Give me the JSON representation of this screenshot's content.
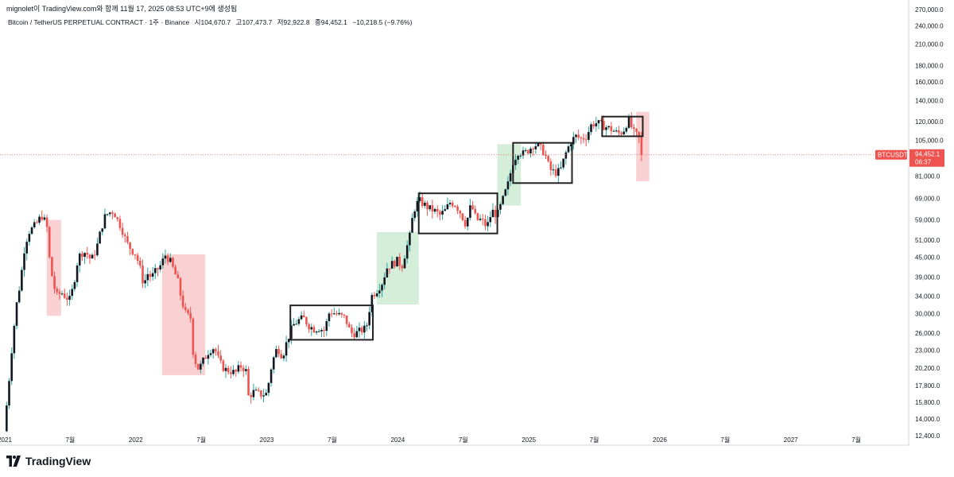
{
  "header": {
    "publish_line": "mignolet이 TradingView.com와 함께 11월 17, 2025 08:53 UTC+9에 생성됨",
    "symbol_line": "Bitcoin / TetherUS PERPETUAL CONTRACT · 1주 · Binance",
    "open": "시104,670.7",
    "high": "고107,473.7",
    "low": "저92,922.8",
    "close": "종94,452.1",
    "change": "−10,218.5 (−9.76%)"
  },
  "footer": {
    "brand": "TradingView"
  },
  "colors": {
    "up": "#26a69a",
    "down": "#ef5350",
    "body_up": "#131722",
    "red_zone": "#f8c9cb",
    "green_zone": "#cdebd3",
    "box": "#222222"
  },
  "chart_data": {
    "type": "candlestick",
    "title": "Bitcoin / TetherUS PERPETUAL CONTRACT · 1주 · Binance",
    "yscale": "log",
    "ylim": [
      12400,
      270000
    ],
    "xlim": [
      2021.0,
      2027.9
    ],
    "y_ticks": [
      "270,000.0",
      "240,000.0",
      "210,000.0",
      "180,000.0",
      "160,000.0",
      "140,000.0",
      "120,000.0",
      "105,000.0",
      "94,452.1",
      "81,000.0",
      "69,000.0",
      "59,000.0",
      "51,000.0",
      "45,000.0",
      "39,000.0",
      "34,000.0",
      "30,000.0",
      "26,000.0",
      "23,000.0",
      "20,200.0",
      "17,800.0",
      "15,800.0",
      "14,000.0",
      "12,400.0"
    ],
    "y_tick_values": [
      270000,
      240000,
      210000,
      180000,
      160000,
      140000,
      120000,
      105000,
      94452.1,
      81000,
      69000,
      59000,
      51000,
      45000,
      39000,
      34000,
      30000,
      26000,
      23000,
      20200,
      17800,
      15800,
      14000,
      12400
    ],
    "x_ticks": [
      {
        "label": "2021",
        "t": 2021.0
      },
      {
        "label": "7월",
        "t": 2021.5
      },
      {
        "label": "2022",
        "t": 2022.0
      },
      {
        "label": "7월",
        "t": 2022.5
      },
      {
        "label": "2023",
        "t": 2023.0
      },
      {
        "label": "7월",
        "t": 2023.5
      },
      {
        "label": "2024",
        "t": 2024.0
      },
      {
        "label": "7월",
        "t": 2024.5
      },
      {
        "label": "2025",
        "t": 2025.0
      },
      {
        "label": "7월",
        "t": 2025.5
      },
      {
        "label": "2026",
        "t": 2026.0
      },
      {
        "label": "7월",
        "t": 2026.5
      },
      {
        "label": "2027",
        "t": 2027.0
      },
      {
        "label": "7월",
        "t": 2027.5
      }
    ],
    "price_tag": {
      "symbol": "BTCUSDT.P",
      "price": "94,452.1",
      "countdown": "06:37",
      "value": 94452.1
    },
    "path_points": [
      [
        2020.995,
        12800
      ],
      [
        2021.03,
        18000
      ],
      [
        2021.06,
        25000
      ],
      [
        2021.09,
        32000
      ],
      [
        2021.12,
        38000
      ],
      [
        2021.15,
        48000
      ],
      [
        2021.18,
        54000
      ],
      [
        2021.22,
        56000
      ],
      [
        2021.25,
        58000
      ],
      [
        2021.28,
        61000
      ],
      [
        2021.32,
        57000
      ],
      [
        2021.34,
        45000
      ],
      [
        2021.37,
        37000
      ],
      [
        2021.4,
        34000
      ],
      [
        2021.43,
        35000
      ],
      [
        2021.46,
        34000
      ],
      [
        2021.5,
        33000
      ],
      [
        2021.53,
        38000
      ],
      [
        2021.56,
        45000
      ],
      [
        2021.6,
        47000
      ],
      [
        2021.63,
        46000
      ],
      [
        2021.66,
        44000
      ],
      [
        2021.7,
        48000
      ],
      [
        2021.73,
        54000
      ],
      [
        2021.76,
        60000
      ],
      [
        2021.79,
        62000
      ],
      [
        2021.83,
        63000
      ],
      [
        2021.86,
        59000
      ],
      [
        2021.89,
        56000
      ],
      [
        2021.93,
        50000
      ],
      [
        2021.96,
        48000
      ],
      [
        2022.0,
        46000
      ],
      [
        2022.03,
        42000
      ],
      [
        2022.06,
        37000
      ],
      [
        2022.09,
        40000
      ],
      [
        2022.12,
        39000
      ],
      [
        2022.16,
        41000
      ],
      [
        2022.2,
        43000
      ],
      [
        2022.22,
        46000
      ],
      [
        2022.26,
        44000
      ],
      [
        2022.3,
        40000
      ],
      [
        2022.32,
        38000
      ],
      [
        2022.35,
        33000
      ],
      [
        2022.38,
        30000
      ],
      [
        2022.42,
        29000
      ],
      [
        2022.44,
        22000
      ],
      [
        2022.48,
        20000
      ],
      [
        2022.52,
        21500
      ],
      [
        2022.56,
        23000
      ],
      [
        2022.6,
        23500
      ],
      [
        2022.64,
        21000
      ],
      [
        2022.68,
        20000
      ],
      [
        2022.72,
        19800
      ],
      [
        2022.76,
        19500
      ],
      [
        2022.8,
        20500
      ],
      [
        2022.84,
        20000
      ],
      [
        2022.86,
        16500
      ],
      [
        2022.9,
        17000
      ],
      [
        2022.96,
        16700
      ],
      [
        2023.0,
        16800
      ],
      [
        2023.04,
        21000
      ],
      [
        2023.08,
        23500
      ],
      [
        2023.12,
        22000
      ],
      [
        2023.16,
        25000
      ],
      [
        2023.2,
        27500
      ],
      [
        2023.24,
        28500
      ],
      [
        2023.28,
        29000
      ],
      [
        2023.32,
        27500
      ],
      [
        2023.36,
        26800
      ],
      [
        2023.4,
        27000
      ],
      [
        2023.44,
        26500
      ],
      [
        2023.48,
        30500
      ],
      [
        2023.52,
        30000
      ],
      [
        2023.56,
        29500
      ],
      [
        2023.6,
        29000
      ],
      [
        2023.64,
        26000
      ],
      [
        2023.68,
        26000
      ],
      [
        2023.72,
        26500
      ],
      [
        2023.76,
        27000
      ],
      [
        2023.8,
        34000
      ],
      [
        2023.84,
        35500
      ],
      [
        2023.88,
        37500
      ],
      [
        2023.92,
        42000
      ],
      [
        2023.96,
        43000
      ],
      [
        2024.0,
        44000
      ],
      [
        2024.03,
        42000
      ],
      [
        2024.06,
        47000
      ],
      [
        2024.09,
        52000
      ],
      [
        2024.12,
        63000
      ],
      [
        2024.16,
        68000
      ],
      [
        2024.2,
        66000
      ],
      [
        2024.24,
        64000
      ],
      [
        2024.28,
        63000
      ],
      [
        2024.32,
        61000
      ],
      [
        2024.36,
        63000
      ],
      [
        2024.4,
        67000
      ],
      [
        2024.44,
        66000
      ],
      [
        2024.48,
        62000
      ],
      [
        2024.52,
        57000
      ],
      [
        2024.56,
        66000
      ],
      [
        2024.6,
        59000
      ],
      [
        2024.64,
        59000
      ],
      [
        2024.68,
        56000
      ],
      [
        2024.72,
        63000
      ],
      [
        2024.76,
        61000
      ],
      [
        2024.8,
        68000
      ],
      [
        2024.84,
        76000
      ],
      [
        2024.88,
        90000
      ],
      [
        2024.92,
        97000
      ],
      [
        2024.96,
        95000
      ],
      [
        2025.0,
        98000
      ],
      [
        2025.04,
        102000
      ],
      [
        2025.08,
        100000
      ],
      [
        2025.12,
        96000
      ],
      [
        2025.16,
        85000
      ],
      [
        2025.2,
        83000
      ],
      [
        2025.24,
        84000
      ],
      [
        2025.28,
        95000
      ],
      [
        2025.32,
        104000
      ],
      [
        2025.36,
        108000
      ],
      [
        2025.4,
        106000
      ],
      [
        2025.44,
        108000
      ],
      [
        2025.48,
        118000
      ],
      [
        2025.52,
        119000
      ],
      [
        2025.56,
        117000
      ],
      [
        2025.6,
        115000
      ],
      [
        2025.64,
        113000
      ],
      [
        2025.68,
        110000
      ],
      [
        2025.72,
        112000
      ],
      [
        2025.76,
        122000
      ],
      [
        2025.8,
        111000
      ],
      [
        2025.84,
        107000
      ],
      [
        2025.87,
        94452.1
      ]
    ],
    "zones": [
      {
        "kind": "red",
        "t0": 2021.32,
        "t1": 2021.43,
        "y_low": 29500,
        "y_high": 59000
      },
      {
        "kind": "red",
        "t0": 2022.2,
        "t1": 2022.53,
        "y_low": 19200,
        "y_high": 46000
      },
      {
        "kind": "green",
        "t0": 2023.84,
        "t1": 2024.16,
        "y_low": 32000,
        "y_high": 54000
      },
      {
        "kind": "green",
        "t0": 2024.76,
        "t1": 2024.94,
        "y_low": 65500,
        "y_high": 102000
      },
      {
        "kind": "red",
        "t0": 2025.82,
        "t1": 2025.92,
        "y_low": 78000,
        "y_high": 129000
      }
    ],
    "range_boxes": [
      {
        "t0": 2023.18,
        "t1": 2023.81,
        "y_low": 24800,
        "y_high": 31800
      },
      {
        "t0": 2024.16,
        "t1": 2024.76,
        "y_low": 53500,
        "y_high": 71500
      },
      {
        "t0": 2024.88,
        "t1": 2025.33,
        "y_low": 77000,
        "y_high": 103000
      },
      {
        "t0": 2025.56,
        "t1": 2025.87,
        "y_low": 108000,
        "y_high": 124500
      }
    ]
  }
}
